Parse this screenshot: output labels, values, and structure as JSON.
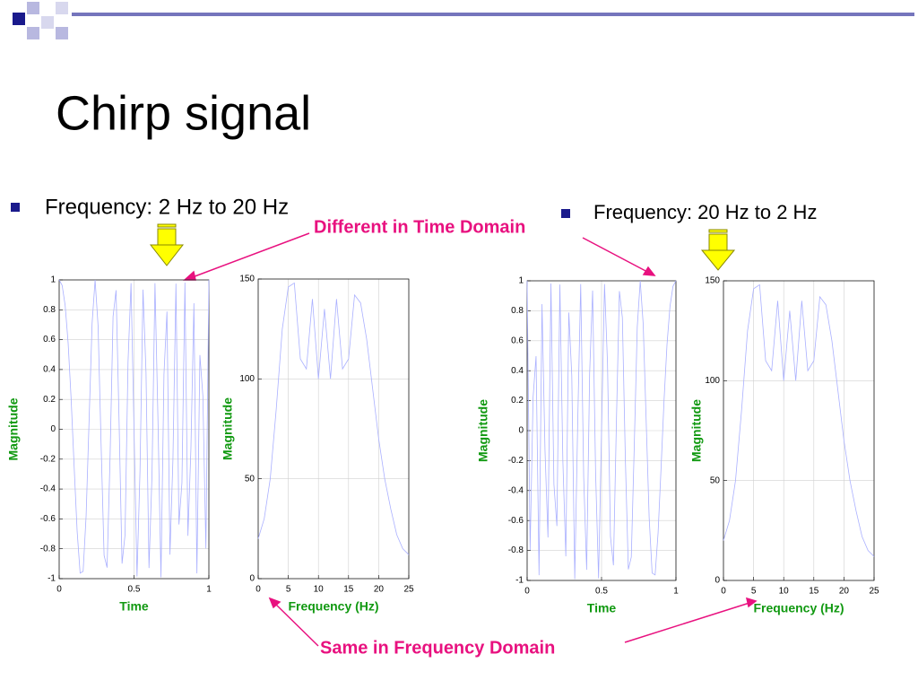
{
  "title": "Chirp signal",
  "bullets": [
    "Frequency: 2 Hz to 20 Hz",
    "Frequency: 20 Hz to 2 Hz"
  ],
  "annotations": [
    "Different in Time Domain",
    "Same in Frequency Domain"
  ],
  "chart_data": [
    {
      "type": "line",
      "xlabel": "Time",
      "ylabel": "Magnitude",
      "color": "#aab0ff",
      "grid": true,
      "xlim": [
        0,
        1
      ],
      "ylim": [
        -1,
        1
      ],
      "xticks": [
        0,
        0.5,
        1
      ],
      "yticks": [
        -1,
        -0.8,
        -0.6,
        -0.4,
        -0.2,
        0,
        0.2,
        0.4,
        0.6,
        0.8,
        1
      ],
      "x": [
        0,
        0.02,
        0.04,
        0.06,
        0.08,
        0.1,
        0.12,
        0.14,
        0.16,
        0.18,
        0.2,
        0.22,
        0.24,
        0.26,
        0.28,
        0.3,
        0.32,
        0.34,
        0.36,
        0.38,
        0.4,
        0.42,
        0.44,
        0.46,
        0.48,
        0.5,
        0.52,
        0.54,
        0.56,
        0.58,
        0.6,
        0.62,
        0.64,
        0.66,
        0.68,
        0.7,
        0.72,
        0.74,
        0.76,
        0.78,
        0.8,
        0.82,
        0.84,
        0.86,
        0.88,
        0.9,
        0.92,
        0.94,
        0.96,
        0.98,
        1
      ],
      "values": [
        1,
        0.963,
        0.829,
        0.576,
        0.202,
        -0.249,
        -0.682,
        -0.963,
        -0.951,
        -0.58,
        0.063,
        0.71,
        1,
        0.692,
        -0.098,
        -0.844,
        -0.926,
        -0.186,
        0.754,
        0.931,
        0.063,
        -0.899,
        -0.707,
        0.451,
        0.978,
        0,
        -0.986,
        -0.278,
        0.935,
        0.382,
        -0.929,
        -0.309,
        0.978,
        0.06,
        -0.991,
        0.368,
        0.788,
        -0.839,
        -0.198,
        0.975,
        -0.637,
        -0.358,
        0.982,
        -0.713,
        -0.129,
        0.844,
        -0.965,
        0.497,
        0.222,
        -0.797,
        1
      ]
    },
    {
      "type": "line",
      "xlabel": "Frequency (Hz)",
      "ylabel": "Magnitude",
      "color": "#aab0ff",
      "grid": true,
      "xlim": [
        0,
        25
      ],
      "ylim": [
        0,
        150
      ],
      "xticks": [
        0,
        5,
        10,
        15,
        20,
        25
      ],
      "yticks": [
        0,
        50,
        100,
        150
      ],
      "x": [
        0,
        1,
        2,
        3,
        4,
        5,
        6,
        7,
        8,
        9,
        10,
        11,
        12,
        13,
        14,
        15,
        16,
        17,
        18,
        19,
        20,
        21,
        22,
        23,
        24,
        25
      ],
      "values": [
        20,
        30,
        50,
        85,
        125,
        146,
        148,
        110,
        105,
        140,
        100,
        135,
        100,
        140,
        105,
        110,
        142,
        138,
        120,
        95,
        70,
        50,
        35,
        22,
        15,
        12
      ]
    },
    {
      "type": "line",
      "xlabel": "Time",
      "ylabel": "Magnitude",
      "color": "#aab0ff",
      "grid": true,
      "xlim": [
        0,
        1
      ],
      "ylim": [
        -1,
        1
      ],
      "xticks": [
        0,
        0.5,
        1
      ],
      "yticks": [
        -1,
        -0.8,
        -0.6,
        -0.4,
        -0.2,
        0,
        0.2,
        0.4,
        0.6,
        0.8,
        1
      ],
      "x": [
        0,
        0.02,
        0.04,
        0.06,
        0.08,
        0.1,
        0.12,
        0.14,
        0.16,
        0.18,
        0.2,
        0.22,
        0.24,
        0.26,
        0.28,
        0.3,
        0.32,
        0.34,
        0.36,
        0.38,
        0.4,
        0.42,
        0.44,
        0.46,
        0.48,
        0.5,
        0.52,
        0.54,
        0.56,
        0.58,
        0.6,
        0.62,
        0.64,
        0.66,
        0.68,
        0.7,
        0.72,
        0.74,
        0.76,
        0.78,
        0.8,
        0.82,
        0.84,
        0.86,
        0.88,
        0.9,
        0.92,
        0.94,
        0.96,
        0.98,
        1
      ],
      "values": [
        1,
        -0.797,
        0.222,
        0.497,
        -0.965,
        0.844,
        -0.129,
        -0.713,
        0.982,
        -0.358,
        -0.637,
        0.975,
        -0.198,
        -0.839,
        0.788,
        0.368,
        -0.991,
        0.06,
        0.978,
        -0.309,
        -0.929,
        0.382,
        0.935,
        -0.278,
        -0.986,
        0,
        0.978,
        0.451,
        -0.707,
        -0.899,
        0.063,
        0.931,
        0.754,
        -0.186,
        -0.926,
        -0.844,
        -0.098,
        0.692,
        1,
        0.71,
        0.063,
        -0.58,
        -0.951,
        -0.963,
        -0.682,
        -0.249,
        0.202,
        0.576,
        0.829,
        0.963,
        1
      ]
    },
    {
      "type": "line",
      "xlabel": "Frequency (Hz)",
      "ylabel": "Magnitude",
      "color": "#aab0ff",
      "grid": true,
      "xlim": [
        0,
        25
      ],
      "ylim": [
        0,
        150
      ],
      "xticks": [
        0,
        5,
        10,
        15,
        20,
        25
      ],
      "yticks": [
        0,
        50,
        100,
        150
      ],
      "x": [
        0,
        1,
        2,
        3,
        4,
        5,
        6,
        7,
        8,
        9,
        10,
        11,
        12,
        13,
        14,
        15,
        16,
        17,
        18,
        19,
        20,
        21,
        22,
        23,
        24,
        25
      ],
      "values": [
        20,
        30,
        50,
        85,
        125,
        146,
        148,
        110,
        105,
        140,
        100,
        135,
        100,
        140,
        105,
        110,
        142,
        138,
        120,
        95,
        70,
        50,
        35,
        22,
        15,
        12
      ]
    }
  ]
}
